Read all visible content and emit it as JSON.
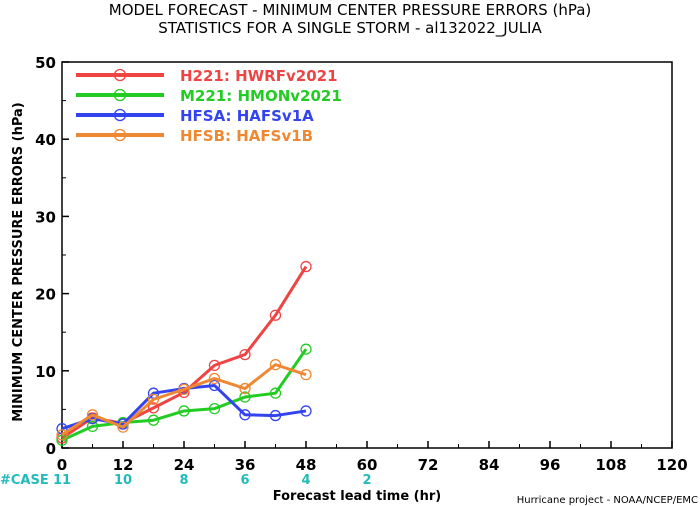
{
  "chart_data": {
    "type": "line",
    "title": "MODEL FORECAST - MINIMUM CENTER PRESSURE ERRORS (hPa)",
    "subtitle": "STATISTICS FOR A SINGLE STORM - al132022_JULIA",
    "xlabel": "Forecast lead time (hr)",
    "ylabel": "MINIMUM CENTER PRESSURE ERRORS (hPa)",
    "xlim": [
      0,
      120
    ],
    "ylim": [
      0,
      50
    ],
    "x_ticks": [
      "0",
      "12",
      "24",
      "36",
      "48",
      "60",
      "72",
      "84",
      "96",
      "108",
      "120"
    ],
    "y_ticks": [
      "0",
      "10",
      "20",
      "30",
      "40",
      "50"
    ],
    "grid": false,
    "legend_position": "top-left",
    "case_label": "#CASE",
    "case_counts": [
      {
        "x": 0,
        "label": "11"
      },
      {
        "x": 12,
        "label": "10"
      },
      {
        "x": 24,
        "label": "8"
      },
      {
        "x": 36,
        "label": "6"
      },
      {
        "x": 48,
        "label": "4"
      },
      {
        "x": 60,
        "label": "2"
      }
    ],
    "case_color": "#22bbbb",
    "credit": "Hurricane project - NOAA/NCEP/EMC",
    "series": [
      {
        "name": "H221: HWRFv2021",
        "color": "#ee4444",
        "x": [
          0,
          6,
          12,
          18,
          24,
          30,
          36,
          42,
          48
        ],
        "values": [
          1.3,
          3.9,
          3.2,
          5.2,
          7.2,
          10.7,
          12.1,
          17.2,
          23.5
        ]
      },
      {
        "name": "M221: HMONv2021",
        "color": "#22cc22",
        "x": [
          0,
          6,
          12,
          18,
          24,
          30,
          36,
          42,
          48
        ],
        "values": [
          1.0,
          2.8,
          3.3,
          3.6,
          4.8,
          5.1,
          6.6,
          7.1,
          12.8
        ]
      },
      {
        "name": "HFSA: HAFSv1A",
        "color": "#3344ee",
        "x": [
          0,
          6,
          12,
          18,
          24,
          30,
          36,
          42,
          48
        ],
        "values": [
          2.5,
          3.8,
          3.1,
          7.1,
          7.7,
          8.1,
          4.3,
          4.2,
          4.8
        ]
      },
      {
        "name": "HFSB: HAFSv1B",
        "color": "#ee8833",
        "x": [
          0,
          6,
          12,
          18,
          24,
          30,
          36,
          42,
          48
        ],
        "values": [
          1.7,
          4.3,
          2.7,
          6.3,
          7.6,
          9.0,
          7.7,
          10.8,
          9.5
        ]
      }
    ]
  }
}
